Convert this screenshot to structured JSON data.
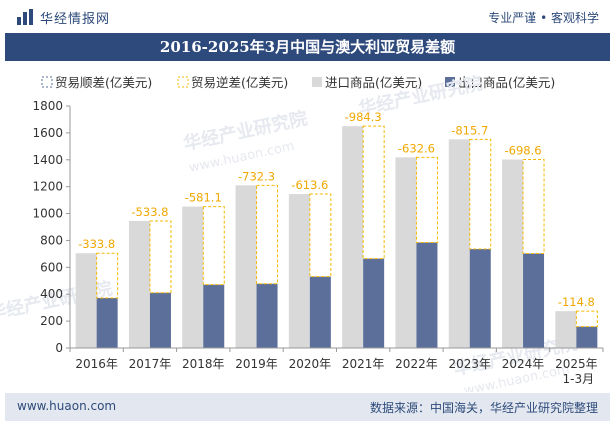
{
  "header": {
    "brand": "华经情报网",
    "tagline": "专业严谨 • 客观科学"
  },
  "footer": {
    "url": "www.huaon.com",
    "source": "数据来源：中国海关，华经产业研究院整理"
  },
  "colors": {
    "brand_blue": "#2e4a7d",
    "import_bar": "#d9d9d9",
    "export_bar": "#5b6f9a",
    "deficit_border": "#f5b800",
    "label_color": "#f0a800"
  },
  "watermarks": [
    "华经产业研究院",
    "www.huaon.com"
  ],
  "chart_data": {
    "type": "bar",
    "title": "2016-2025年3月中国与澳大利亚贸易差额",
    "categories": [
      "2016年",
      "2017年",
      "2018年",
      "2019年",
      "2020年",
      "2021年",
      "2022年",
      "2023年",
      "2024年",
      "2025年\n1-3月"
    ],
    "series": [
      {
        "name": "贸易顺差(亿美元)",
        "values": [
          null,
          null,
          null,
          null,
          null,
          null,
          null,
          null,
          null,
          null
        ]
      },
      {
        "name": "贸易逆差(亿美元)",
        "values": [
          -333.8,
          -533.8,
          -581.1,
          -732.3,
          -613.6,
          -984.3,
          -632.6,
          -815.7,
          -698.6,
          -114.8
        ]
      },
      {
        "name": "进口商品(亿美元)",
        "values": [
          705,
          945,
          1052,
          1210,
          1145,
          1650,
          1418,
          1552,
          1402,
          274
        ]
      },
      {
        "name": "出口商品(亿美元)",
        "values": [
          372,
          411,
          471,
          478,
          531,
          665,
          785,
          736,
          703,
          159
        ]
      }
    ],
    "ylim": [
      0,
      1800
    ],
    "yticks": [
      0,
      200,
      400,
      600,
      800,
      1000,
      1200,
      1400,
      1600,
      1800
    ],
    "grid": false,
    "legend_position": "top"
  }
}
